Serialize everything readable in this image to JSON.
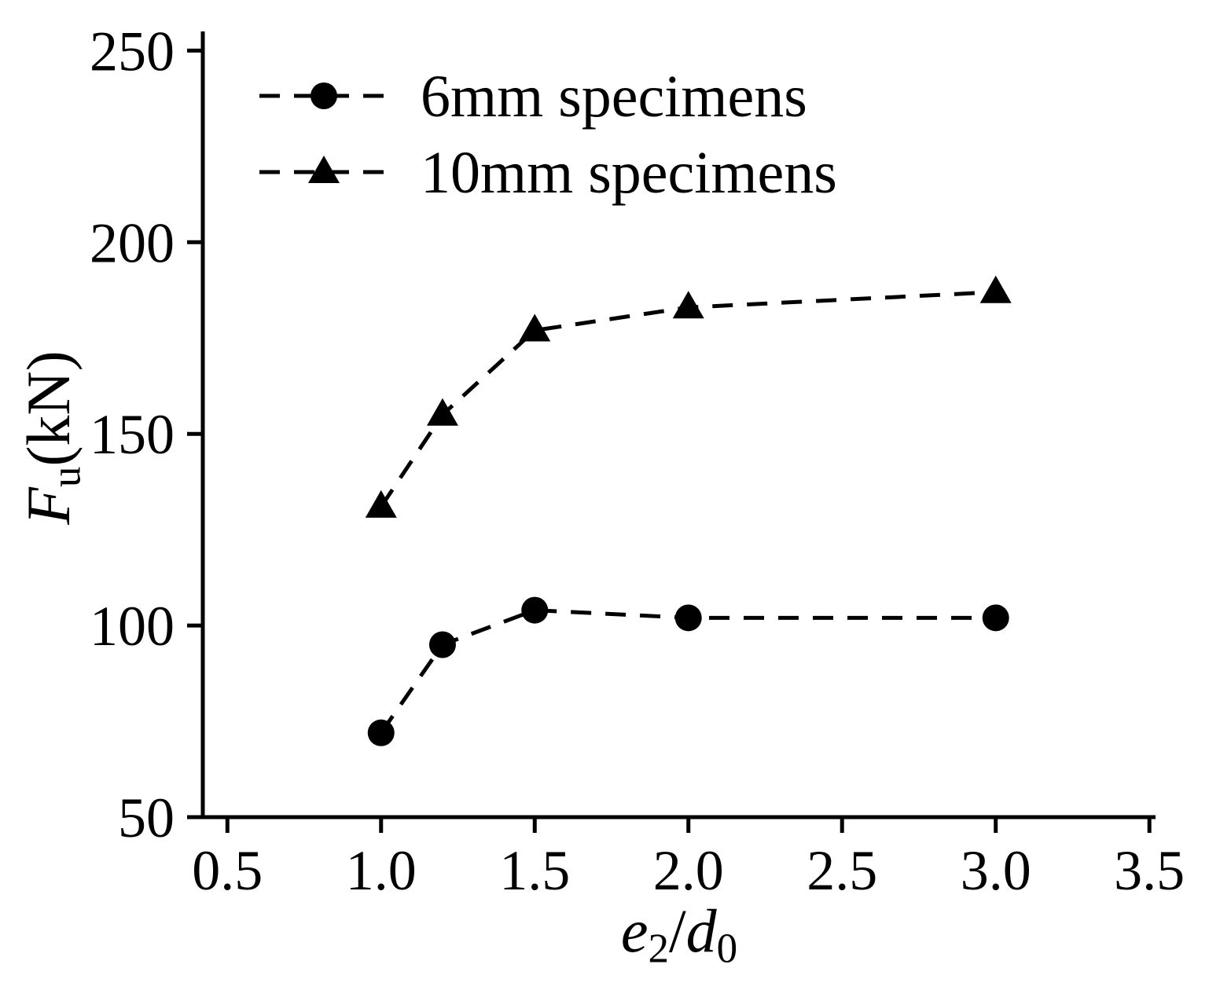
{
  "chart_data": {
    "type": "line",
    "title": "",
    "xlabel": "e2/d0",
    "ylabel": "Fu(kN)",
    "xlabel_parts": {
      "base1": "e",
      "sub1": "2",
      "slash": "/",
      "base2": "d",
      "sub2": "0"
    },
    "ylabel_parts": {
      "base": "F",
      "sub": "u",
      "rest": "(kN)"
    },
    "xlim": [
      0.42,
      3.52
    ],
    "ylim": [
      50,
      255
    ],
    "xticks": [
      0.5,
      1.0,
      1.5,
      2.0,
      2.5,
      3.0,
      3.5
    ],
    "xtick_labels": [
      "0.5",
      "1.0",
      "1.5",
      "2.0",
      "2.5",
      "3.0",
      "3.5"
    ],
    "yticks": [
      50,
      100,
      150,
      200,
      250
    ],
    "ytick_labels": [
      "50",
      "100",
      "150",
      "200",
      "250"
    ],
    "grid": false,
    "legend_position": "top-left",
    "axis_color": "#000000",
    "x": [
      1.0,
      1.2,
      1.5,
      2.0,
      3.0
    ],
    "series": [
      {
        "name": "6mm specimens",
        "marker": "circle",
        "linestyle": "dashed",
        "color": "#000000",
        "values": [
          72,
          95,
          104,
          102,
          102
        ]
      },
      {
        "name": "10mm specimens",
        "marker": "triangle",
        "linestyle": "dashed",
        "color": "#000000",
        "values": [
          131,
          155,
          177,
          183,
          187
        ]
      }
    ]
  }
}
